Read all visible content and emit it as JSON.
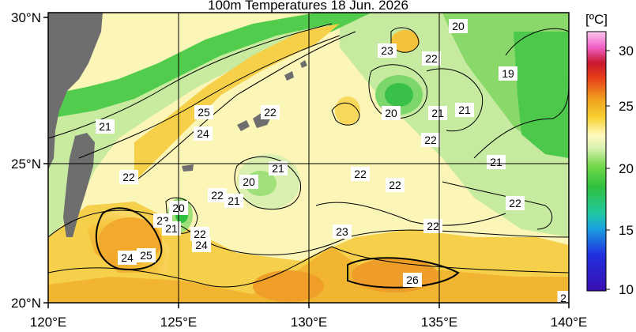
{
  "title": "100m Temperatures  18 Jun. 2026",
  "colorbar": {
    "unit_label": "[ºC]",
    "ticks": [
      "30",
      "25",
      "20",
      "15",
      "10"
    ],
    "range": [
      10,
      31
    ]
  },
  "axes": {
    "y_ticks": [
      "30°N",
      "25°N",
      "20°N"
    ],
    "x_ticks": [
      "120°E",
      "125°E",
      "130°E",
      "135°E",
      "140°E"
    ]
  },
  "contour_labels": [
    "20",
    "23",
    "22",
    "19",
    "25",
    "22",
    "24",
    "21",
    "20",
    "21",
    "21",
    "22",
    "21",
    "22",
    "20",
    "22",
    "22",
    "21",
    "22",
    "20",
    "23",
    "21",
    "22",
    "24",
    "22",
    "23",
    "24",
    "25",
    "26",
    "2"
  ],
  "colors": {
    "land": "#6e6e6e",
    "ocean_warm": "#f5c23a",
    "ocean_mid": "#fbf3a4",
    "ocean_cool": "#8fe07a",
    "coast_green": "#3ecb4a"
  }
}
